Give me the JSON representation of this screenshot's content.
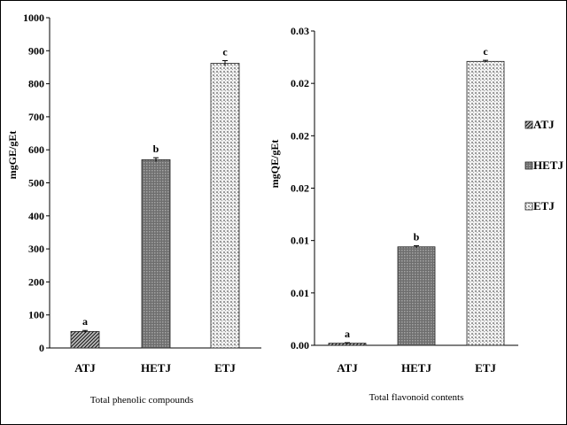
{
  "chart_data": [
    {
      "type": "bar",
      "categories": [
        "ATJ",
        "HETJ",
        "ETJ"
      ],
      "values": [
        50,
        570,
        862
      ],
      "errors": [
        3,
        6,
        8
      ],
      "significance": [
        "a",
        "b",
        "c"
      ],
      "xlabel": "Total phenolic compounds",
      "ylabel": "mgGE/gEt",
      "ylim": [
        0,
        1000
      ],
      "yticks": [
        "0",
        "100",
        "200",
        "300",
        "400",
        "500",
        "600",
        "700",
        "800",
        "900",
        "1000"
      ],
      "grid": false
    },
    {
      "type": "bar",
      "categories": [
        "ATJ",
        "HETJ",
        "ETJ"
      ],
      "values": [
        0.0002,
        0.0094,
        0.0271
      ],
      "errors": [
        5e-05,
        0.0001,
        0.0001
      ],
      "significance": [
        "a",
        "b",
        "c"
      ],
      "xlabel": "Total flavonoid contents",
      "ylabel": "mgQE/gEt",
      "ylim": [
        0,
        0.03
      ],
      "yticks": [
        "0.00",
        "0.01",
        "0.01",
        "0.02",
        "0.02",
        "0.02",
        "0.03"
      ],
      "grid": false
    }
  ],
  "legend": {
    "position": "right",
    "items": [
      "ATJ",
      "HETJ",
      "ETJ"
    ]
  },
  "colors": {
    "ATJ": "#555555",
    "HETJ": "#8a8a8a",
    "ETJ": "#d4d4d4"
  }
}
